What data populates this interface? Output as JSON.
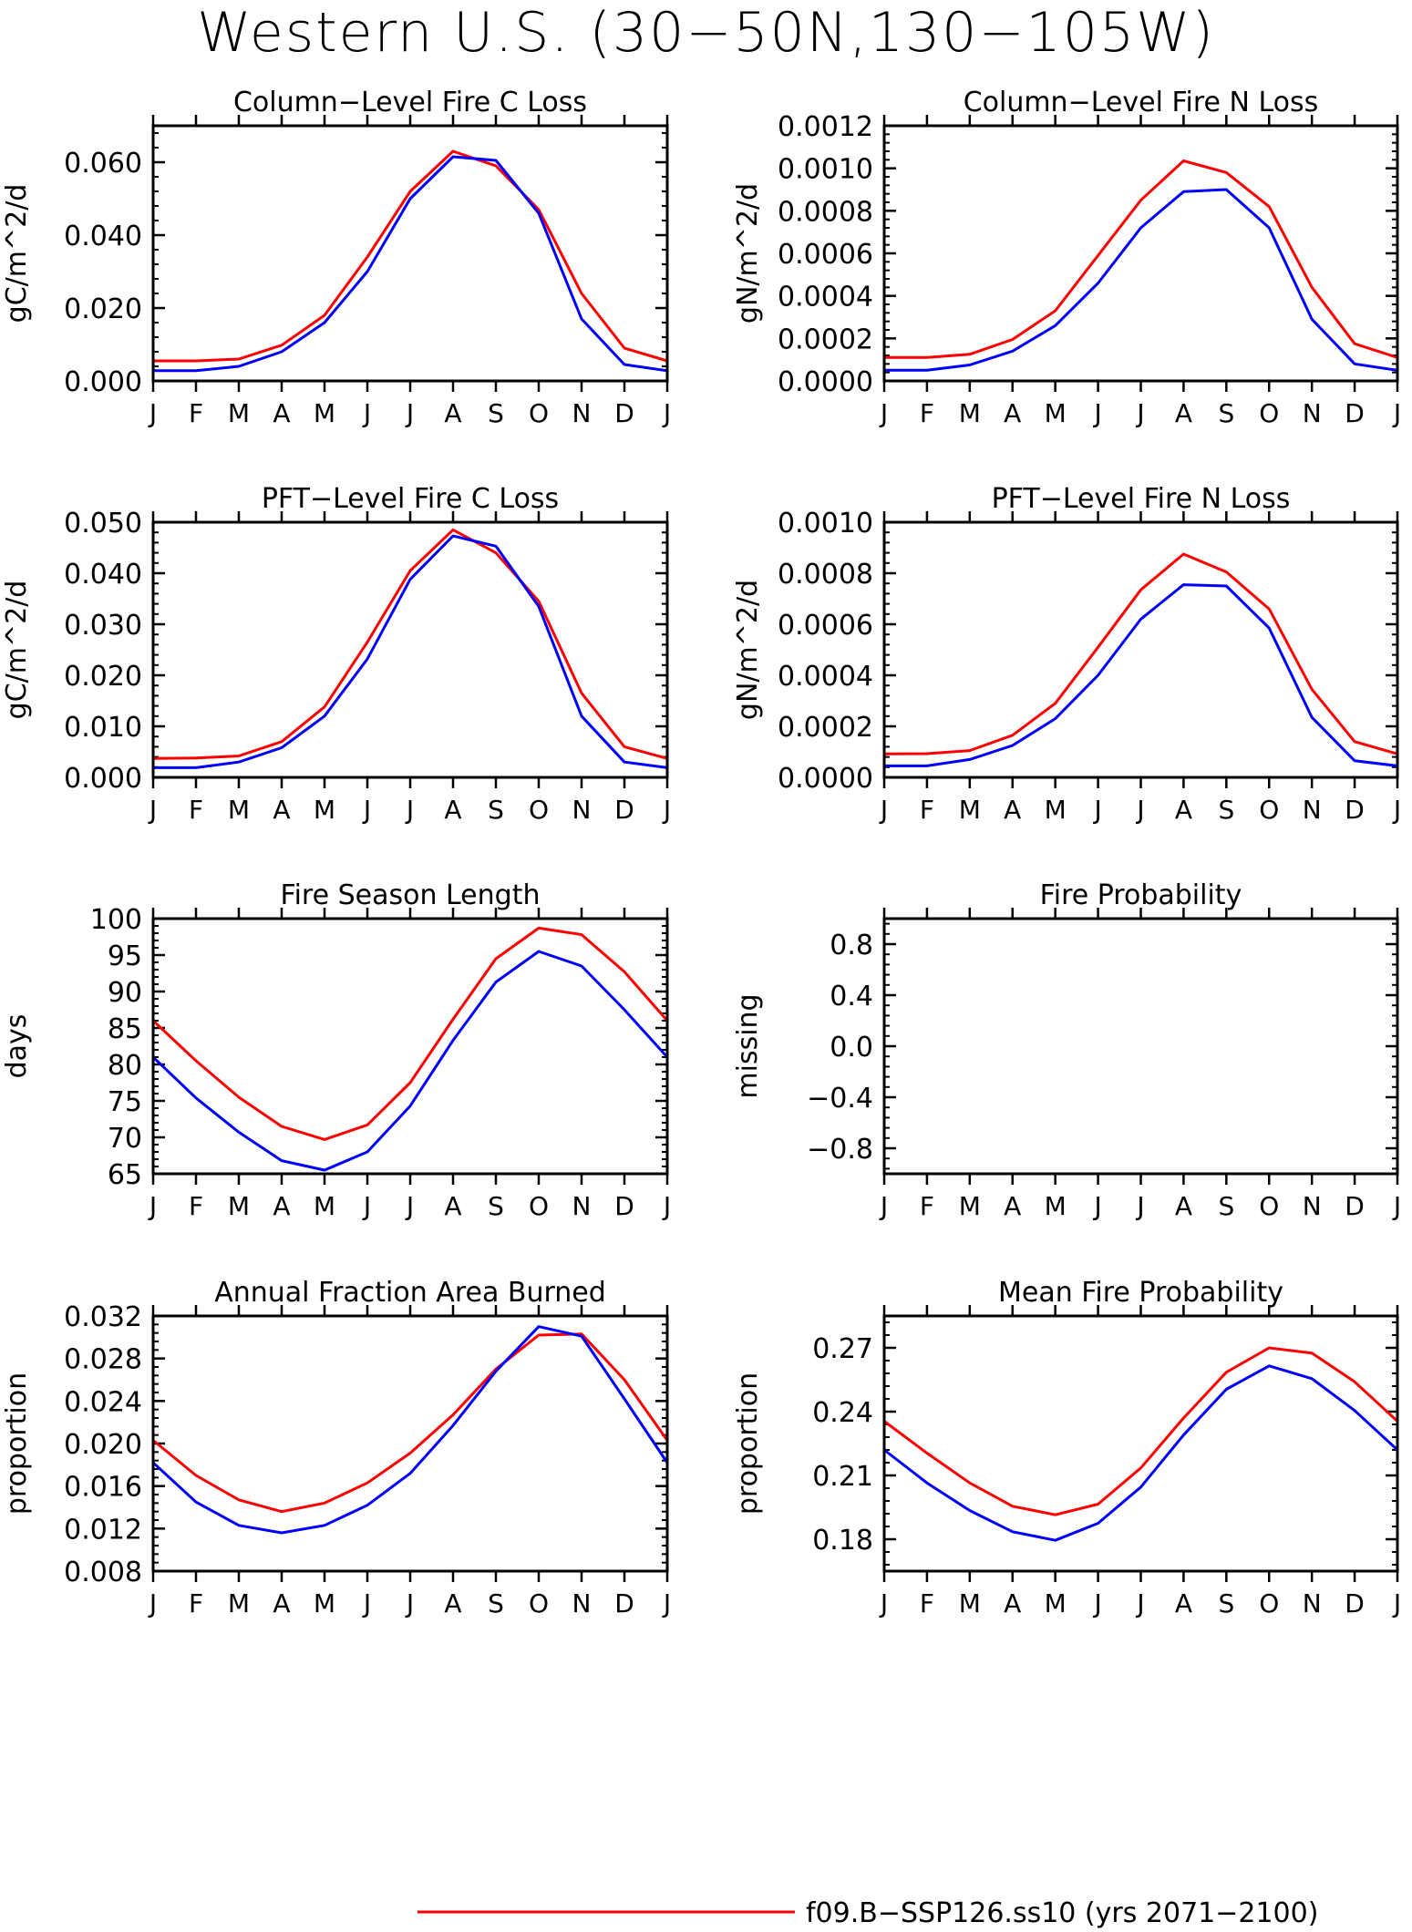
{
  "page": {
    "title": "Western U.S. (30−50N,130−105W)"
  },
  "months": [
    "J",
    "F",
    "M",
    "A",
    "M",
    "J",
    "J",
    "A",
    "S",
    "O",
    "N",
    "D",
    "J"
  ],
  "colors": {
    "series_a": "#ff0000",
    "series_b": "#0000ff",
    "axes": "#000000"
  },
  "legend": {
    "items": [
      {
        "label": "f09.B−SSP126.ss10 (yrs 2071−2100)",
        "color": "#ff0000"
      }
    ]
  },
  "chart_data": [
    {
      "type": "line",
      "title": "Column−Level Fire C Loss",
      "ylabel": "gC/m^2/d",
      "ylim": [
        0,
        0.07
      ],
      "yticks": [
        0,
        0.02,
        0.04,
        0.06
      ],
      "ytick_labels": [
        "0.000",
        "0.020",
        "0.040",
        "0.060"
      ],
      "x": [
        "J",
        "F",
        "M",
        "A",
        "M",
        "J",
        "J",
        "A",
        "S",
        "O",
        "N",
        "D",
        "J"
      ],
      "series": [
        {
          "color": "#ff0000",
          "values": [
            0.0055,
            0.0055,
            0.006,
            0.0098,
            0.018,
            0.034,
            0.052,
            0.063,
            0.059,
            0.047,
            0.024,
            0.009,
            0.0055
          ]
        },
        {
          "color": "#0000ff",
          "values": [
            0.0028,
            0.0028,
            0.004,
            0.008,
            0.016,
            0.03,
            0.05,
            0.0615,
            0.0605,
            0.046,
            0.017,
            0.0045,
            0.0028
          ]
        }
      ]
    },
    {
      "type": "line",
      "title": "Column−Level Fire N Loss",
      "ylabel": "gN/m^2/d",
      "ylim": [
        0,
        0.0012
      ],
      "yticks": [
        0,
        0.0002,
        0.0004,
        0.0006,
        0.0008,
        0.001,
        0.0012
      ],
      "ytick_labels": [
        "0.0000",
        "0.0002",
        "0.0004",
        "0.0006",
        "0.0008",
        "0.0010",
        "0.0012"
      ],
      "x": [
        "J",
        "F",
        "M",
        "A",
        "M",
        "J",
        "J",
        "A",
        "S",
        "O",
        "N",
        "D",
        "J"
      ],
      "series": [
        {
          "color": "#ff0000",
          "values": [
            0.00011,
            0.00011,
            0.000125,
            0.000195,
            0.00033,
            0.00059,
            0.00085,
            0.001035,
            0.00098,
            0.00082,
            0.00044,
            0.000175,
            0.00011
          ]
        },
        {
          "color": "#0000ff",
          "values": [
            5e-05,
            5e-05,
            7.5e-05,
            0.00014,
            0.00026,
            0.00046,
            0.00072,
            0.00089,
            0.0009,
            0.00072,
            0.00029,
            8e-05,
            5e-05
          ]
        }
      ]
    },
    {
      "type": "line",
      "title": "PFT−Level Fire C Loss",
      "ylabel": "gC/m^2/d",
      "ylim": [
        0,
        0.05
      ],
      "yticks": [
        0,
        0.01,
        0.02,
        0.03,
        0.04,
        0.05
      ],
      "ytick_labels": [
        "0.000",
        "0.010",
        "0.020",
        "0.030",
        "0.040",
        "0.050"
      ],
      "x": [
        "J",
        "F",
        "M",
        "A",
        "M",
        "J",
        "J",
        "A",
        "S",
        "O",
        "N",
        "D",
        "J"
      ],
      "series": [
        {
          "color": "#ff0000",
          "values": [
            0.0037,
            0.0038,
            0.0042,
            0.007,
            0.0138,
            0.0265,
            0.0405,
            0.0485,
            0.044,
            0.0345,
            0.0165,
            0.006,
            0.0037
          ]
        },
        {
          "color": "#0000ff",
          "values": [
            0.0019,
            0.0019,
            0.003,
            0.0058,
            0.012,
            0.0232,
            0.0388,
            0.0473,
            0.0453,
            0.0335,
            0.012,
            0.003,
            0.0019
          ]
        }
      ]
    },
    {
      "type": "line",
      "title": "PFT−Level Fire N Loss",
      "ylabel": "gN/m^2/d",
      "ylim": [
        0,
        0.001
      ],
      "yticks": [
        0,
        0.0002,
        0.0004,
        0.0006,
        0.0008,
        0.001
      ],
      "ytick_labels": [
        "0.0000",
        "0.0002",
        "0.0004",
        "0.0006",
        "0.0008",
        "0.0010"
      ],
      "x": [
        "J",
        "F",
        "M",
        "A",
        "M",
        "J",
        "J",
        "A",
        "S",
        "O",
        "N",
        "D",
        "J"
      ],
      "series": [
        {
          "color": "#ff0000",
          "values": [
            9.2e-05,
            9.3e-05,
            0.000105,
            0.000165,
            0.00029,
            0.00051,
            0.000735,
            0.000875,
            0.000805,
            0.00066,
            0.000345,
            0.00014,
            9.2e-05
          ]
        },
        {
          "color": "#0000ff",
          "values": [
            4.5e-05,
            4.5e-05,
            7e-05,
            0.000125,
            0.00023,
            0.0004,
            0.00062,
            0.000755,
            0.00075,
            0.000585,
            0.000235,
            6.5e-05,
            4.5e-05
          ]
        }
      ]
    },
    {
      "type": "line",
      "title": "Fire Season Length",
      "ylabel": "days",
      "ylim": [
        65,
        100
      ],
      "yticks": [
        65,
        70,
        75,
        80,
        85,
        90,
        95,
        100
      ],
      "ytick_labels": [
        "65",
        "70",
        "75",
        "80",
        "85",
        "90",
        "95",
        "100"
      ],
      "x": [
        "J",
        "F",
        "M",
        "A",
        "M",
        "J",
        "J",
        "A",
        "S",
        "O",
        "N",
        "D",
        "J"
      ],
      "series": [
        {
          "color": "#ff0000",
          "values": [
            86,
            80.5,
            75.5,
            71.5,
            69.7,
            71.7,
            77.5,
            86.2,
            94.5,
            98.7,
            97.8,
            92.7,
            86
          ]
        },
        {
          "color": "#0000ff",
          "values": [
            81,
            75.4,
            70.7,
            66.8,
            65.5,
            68,
            74.3,
            83.3,
            91.3,
            95.5,
            93.5,
            87.5,
            81
          ]
        }
      ]
    },
    {
      "type": "line",
      "title": "Fire Probability",
      "ylabel": "missing",
      "ylim": [
        -1,
        1
      ],
      "yticks": [
        -0.8,
        -0.4,
        0,
        0.4,
        0.8
      ],
      "ytick_labels": [
        "−0.8",
        "−0.4",
        "0.0",
        "0.4",
        "0.8"
      ],
      "x": [
        "J",
        "F",
        "M",
        "A",
        "M",
        "J",
        "J",
        "A",
        "S",
        "O",
        "N",
        "D",
        "J"
      ],
      "series": []
    },
    {
      "type": "line",
      "title": "Annual Fraction Area Burned",
      "ylabel": "proportion",
      "ylim": [
        0.008,
        0.032
      ],
      "yticks": [
        0.008,
        0.012,
        0.016,
        0.02,
        0.024,
        0.028,
        0.032
      ],
      "ytick_labels": [
        "0.008",
        "0.012",
        "0.016",
        "0.020",
        "0.024",
        "0.028",
        "0.032"
      ],
      "x": [
        "J",
        "F",
        "M",
        "A",
        "M",
        "J",
        "J",
        "A",
        "S",
        "O",
        "N",
        "D",
        "J"
      ],
      "series": [
        {
          "color": "#ff0000",
          "values": [
            0.0203,
            0.017,
            0.0147,
            0.0136,
            0.0144,
            0.0163,
            0.0191,
            0.0227,
            0.027,
            0.0302,
            0.0303,
            0.026,
            0.0203
          ]
        },
        {
          "color": "#0000ff",
          "values": [
            0.0182,
            0.0145,
            0.0123,
            0.0116,
            0.0123,
            0.0142,
            0.0172,
            0.0217,
            0.0268,
            0.031,
            0.0301,
            0.0242,
            0.0182
          ]
        }
      ]
    },
    {
      "type": "line",
      "title": "Mean Fire Probability",
      "ylabel": "proportion",
      "ylim": [
        0.165,
        0.285
      ],
      "yticks": [
        0.18,
        0.21,
        0.24,
        0.27
      ],
      "ytick_labels": [
        "0.18",
        "0.21",
        "0.24",
        "0.27"
      ],
      "x": [
        "J",
        "F",
        "M",
        "A",
        "M",
        "J",
        "J",
        "A",
        "S",
        "O",
        "N",
        "D",
        "J"
      ],
      "series": [
        {
          "color": "#ff0000",
          "values": [
            0.2355,
            0.2205,
            0.2065,
            0.1955,
            0.1915,
            0.1965,
            0.2135,
            0.237,
            0.2585,
            0.27,
            0.2675,
            0.254,
            0.2355
          ]
        },
        {
          "color": "#0000ff",
          "values": [
            0.222,
            0.2065,
            0.1935,
            0.1835,
            0.1795,
            0.1875,
            0.2045,
            0.229,
            0.2505,
            0.2615,
            0.2555,
            0.2405,
            0.222
          ]
        }
      ]
    }
  ]
}
